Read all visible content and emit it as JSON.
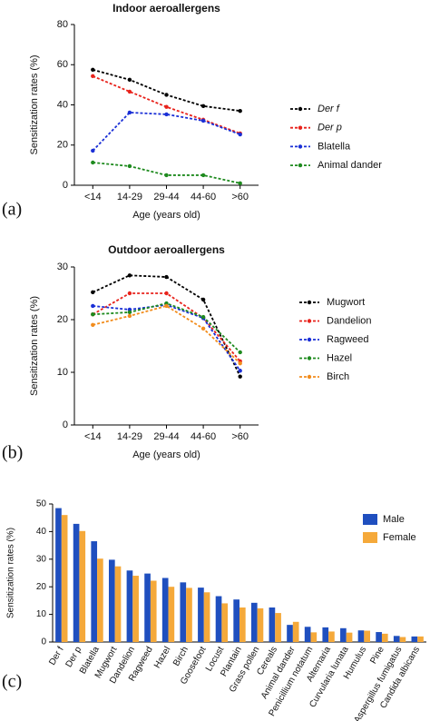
{
  "chart_data": [
    {
      "type": "line",
      "label": "(a)",
      "title": "Indoor aeroallergens",
      "xlabel": "Age (years old)",
      "ylabel": "Sensitization rates (%)",
      "categories": [
        "<14",
        "14-29",
        "29-44",
        "44-60",
        ">60"
      ],
      "ylim": [
        0,
        80
      ],
      "yticks": [
        0,
        20,
        40,
        60,
        80
      ],
      "legend": "right",
      "series": [
        {
          "name": "Der f",
          "font_style": "italic",
          "color": "#000000",
          "values": [
            57.5,
            52.5,
            45,
            39.4,
            37
          ]
        },
        {
          "name": "Der p",
          "font_style": "italic",
          "color": "#e8221b",
          "values": [
            54.3,
            46.6,
            39,
            32.6,
            25.8
          ]
        },
        {
          "name": "Blatella",
          "color": "#1a2fd6",
          "values": [
            17.2,
            36.2,
            35.3,
            32.1,
            25.3
          ]
        },
        {
          "name": "Animal dander",
          "color": "#1e8a1e",
          "values": [
            11.3,
            9.5,
            5,
            5,
            1
          ]
        }
      ]
    },
    {
      "type": "line",
      "label": "(b)",
      "title": "Outdoor aeroallergens",
      "xlabel": "Age (years old)",
      "ylabel": "Sensitization rates (%)",
      "categories": [
        "<14",
        "14-29",
        "29-44",
        "44-60",
        ">60"
      ],
      "ylim": [
        0,
        30
      ],
      "yticks": [
        0,
        10,
        20,
        30
      ],
      "legend": "right",
      "series": [
        {
          "name": "Mugwort",
          "color": "#000000",
          "values": [
            25.2,
            28.4,
            28.1,
            23.8,
            9.2
          ]
        },
        {
          "name": "Dandelion",
          "color": "#e8221b",
          "values": [
            21,
            25,
            25,
            20.3,
            12.1
          ]
        },
        {
          "name": "Ragweed",
          "color": "#1a2fd6",
          "values": [
            22.6,
            21.9,
            22.8,
            20.3,
            10.3
          ]
        },
        {
          "name": "Hazel",
          "color": "#1e8a1e",
          "values": [
            21,
            21.4,
            23.1,
            20.5,
            13.8
          ]
        },
        {
          "name": "Birch",
          "color": "#f28c1c",
          "values": [
            19,
            20.7,
            22.6,
            18.3,
            11.7
          ]
        }
      ]
    },
    {
      "type": "bar",
      "label": "(c)",
      "ylabel": "Sensitization rates (%)",
      "categories": [
        "Der f",
        "Der p",
        "Blatella",
        "Mugwort",
        "Dandelion",
        "Ragweed",
        "Hazel",
        "Birch",
        "Goosefoot",
        "Locust",
        "Plantain",
        "Grass pollen",
        "Cereals",
        "Animal dander",
        "Penicillium notatum",
        "Alternaria",
        "Curvularia lunata",
        "Humulus",
        "Pine",
        "Aspergillus fumigatus",
        "Candida albicans"
      ],
      "ylim": [
        0,
        50
      ],
      "yticks": [
        0,
        10,
        20,
        30,
        40,
        50
      ],
      "legend": "upper right",
      "series": [
        {
          "name": "Male",
          "color": "#1f4fbf",
          "values": [
            48.5,
            42.8,
            36.5,
            29.8,
            25.9,
            24.8,
            23.2,
            21.6,
            19.7,
            16.6,
            15.4,
            14.2,
            12.5,
            6.2,
            5.5,
            5.3,
            5,
            4.2,
            3.6,
            2.2,
            2
          ]
        },
        {
          "name": "Female",
          "color": "#f5a93a",
          "values": [
            46,
            40.2,
            30.2,
            27.4,
            24,
            22.2,
            20,
            19.6,
            18,
            14,
            12.5,
            12.2,
            10.5,
            7.3,
            3.5,
            3.8,
            3.4,
            4.1,
            3,
            1.8,
            2
          ]
        }
      ]
    }
  ]
}
